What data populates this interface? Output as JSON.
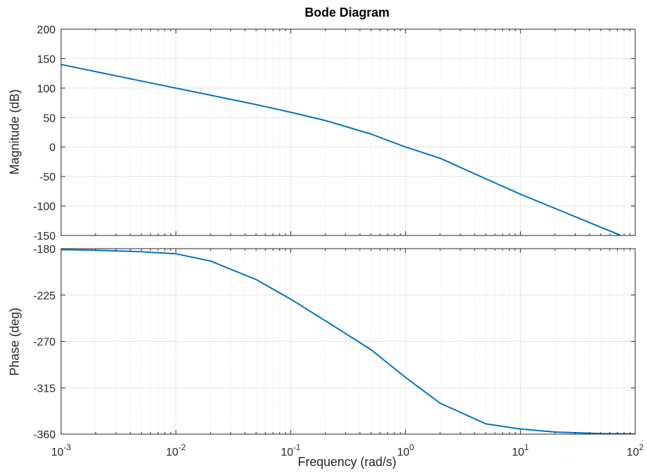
{
  "chart_data": {
    "type": "line",
    "title": "Bode Diagram",
    "xlabel": "Frequency  (rad/s)",
    "x_scale": "log",
    "xlim": [
      0.001,
      100
    ],
    "x_ticks": [
      {
        "value": 0.001,
        "base": "10",
        "exp": "-3"
      },
      {
        "value": 0.01,
        "base": "10",
        "exp": "-2"
      },
      {
        "value": 0.1,
        "base": "10",
        "exp": "-1"
      },
      {
        "value": 1,
        "base": "10",
        "exp": "0"
      },
      {
        "value": 10,
        "base": "10",
        "exp": "1"
      },
      {
        "value": 100,
        "base": "10",
        "exp": "2"
      }
    ],
    "grid": true,
    "line_color": "#0072BD",
    "panels": [
      {
        "id": "magnitude",
        "ylabel": "Magnitude (dB)",
        "ylim": [
          -150,
          200
        ],
        "y_ticks": [
          200,
          150,
          100,
          50,
          0,
          -50,
          -100,
          -150
        ],
        "series": [
          {
            "x": [
              0.001,
              0.002,
              0.005,
              0.01,
              0.02,
              0.05,
              0.1,
              0.2,
              0.5,
              1,
              2,
              5,
              10,
              20,
              50,
              75
            ],
            "values": [
              140,
              128,
              112,
              100,
              88,
              72,
              59,
              45,
              22,
              0,
              -19,
              -54,
              -80,
              -104,
              -136,
              -150
            ]
          }
        ]
      },
      {
        "id": "phase",
        "ylabel": "Phase (deg)",
        "ylim": [
          -360,
          -180
        ],
        "y_ticks": [
          -180,
          -225,
          -270,
          -315,
          -360
        ],
        "series": [
          {
            "x": [
              0.001,
              0.002,
              0.005,
              0.01,
              0.02,
              0.05,
              0.1,
              0.2,
              0.5,
              1,
              2,
              5,
              10,
              20,
              50,
              100
            ],
            "values": [
              -181,
              -181.5,
              -183,
              -185,
              -192,
              -210,
              -229,
              -250,
              -278,
              -305,
              -330,
              -350,
              -355,
              -358,
              -359.5,
              -359.8
            ]
          }
        ]
      }
    ]
  }
}
